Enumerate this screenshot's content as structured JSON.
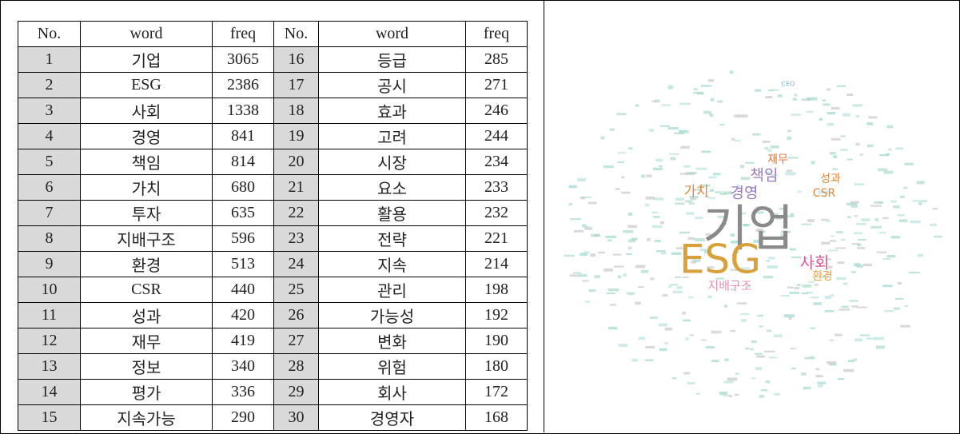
{
  "table": {
    "header": [
      "No.",
      "word",
      "freq",
      "No.",
      "word",
      "freq"
    ],
    "rows": [
      [
        "1",
        "기업",
        "3065",
        "16",
        "등급",
        "285"
      ],
      [
        "2",
        "ESG",
        "2386",
        "17",
        "공시",
        "271"
      ],
      [
        "3",
        "사회",
        "1338",
        "18",
        "효과",
        "246"
      ],
      [
        "4",
        "경영",
        "841",
        "19",
        "고려",
        "244"
      ],
      [
        "5",
        "책임",
        "814",
        "20",
        "시장",
        "234"
      ],
      [
        "6",
        "가치",
        "680",
        "21",
        "요소",
        "233"
      ],
      [
        "7",
        "투자",
        "635",
        "22",
        "활용",
        "232"
      ],
      [
        "8",
        "지배구조",
        "596",
        "23",
        "전략",
        "221"
      ],
      [
        "9",
        "환경",
        "513",
        "24",
        "지속",
        "214"
      ],
      [
        "10",
        "CSR",
        "440",
        "25",
        "관리",
        "198"
      ],
      [
        "11",
        "성과",
        "420",
        "26",
        "가능성",
        "192"
      ],
      [
        "12",
        "재무",
        "419",
        "27",
        "변화",
        "190"
      ],
      [
        "13",
        "정보",
        "340",
        "28",
        "위험",
        "180"
      ],
      [
        "14",
        "평가",
        "336",
        "29",
        "회사",
        "172"
      ],
      [
        "15",
        "지속가능",
        "290",
        "30",
        "경영자",
        "168"
      ]
    ]
  },
  "word_cloud": {
    "words": [
      "기업",
      "ESG",
      "사회",
      "환경",
      "지배구조",
      "가치",
      "경영",
      "책임",
      "재무",
      "성과",
      "CSR",
      "CEO"
    ]
  }
}
